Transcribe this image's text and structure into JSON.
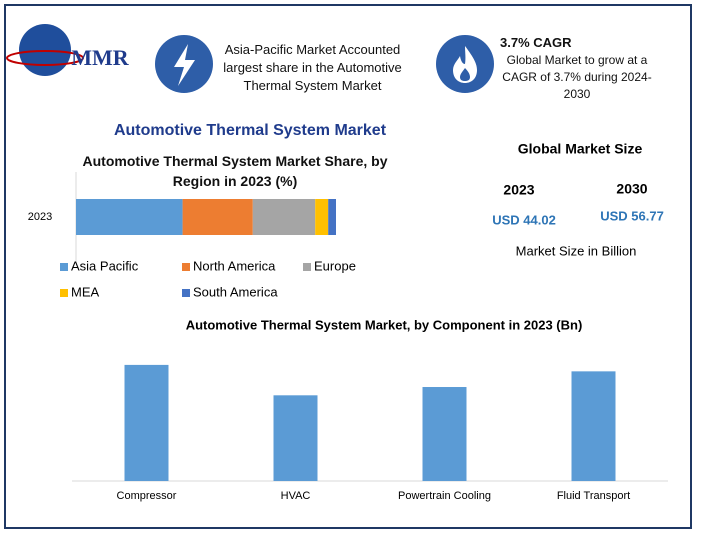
{
  "logo": "MMR",
  "info1": "Asia-Pacific Market Accounted largest share in the Automotive Thermal System Market",
  "info2": {
    "title": "3.7% CAGR",
    "text": "Global Market to grow at a CAGR of 3.7% during 2024-2030"
  },
  "main_title": "Automotive Thermal System Market",
  "market_size": {
    "title": "Global Market Size",
    "years": [
      "2023",
      "2030"
    ],
    "values": [
      "USD 44.02",
      "USD 56.77"
    ],
    "note": "Market Size in Billion"
  },
  "chart_data": [
    {
      "type": "stacked_barh",
      "title": "Automotive Thermal System Market Share, by Region in 2023 (%)",
      "categories": [
        "2023"
      ],
      "xlim": [
        0,
        100
      ],
      "series": [
        {
          "name": "Asia Pacific",
          "color": "#5b9bd5",
          "values": [
            41
          ]
        },
        {
          "name": "North America",
          "color": "#ed7d31",
          "values": [
            27
          ]
        },
        {
          "name": "Europe",
          "color": "#a5a5a5",
          "values": [
            24
          ]
        },
        {
          "name": "MEA",
          "color": "#ffc000",
          "values": [
            5
          ]
        },
        {
          "name": "South America",
          "color": "#4472c4",
          "values": [
            3
          ]
        }
      ]
    },
    {
      "type": "bar",
      "title": "Automotive Thermal System Market, by Component in 2023 (Bn)",
      "categories": [
        "Compressor",
        "HVAC",
        "Powertrain Cooling",
        "Fluid Transport"
      ],
      "values": [
        12.6,
        9.3,
        10.2,
        11.9
      ],
      "color": "#5b9bd5",
      "ylim": [
        0,
        14
      ]
    }
  ]
}
